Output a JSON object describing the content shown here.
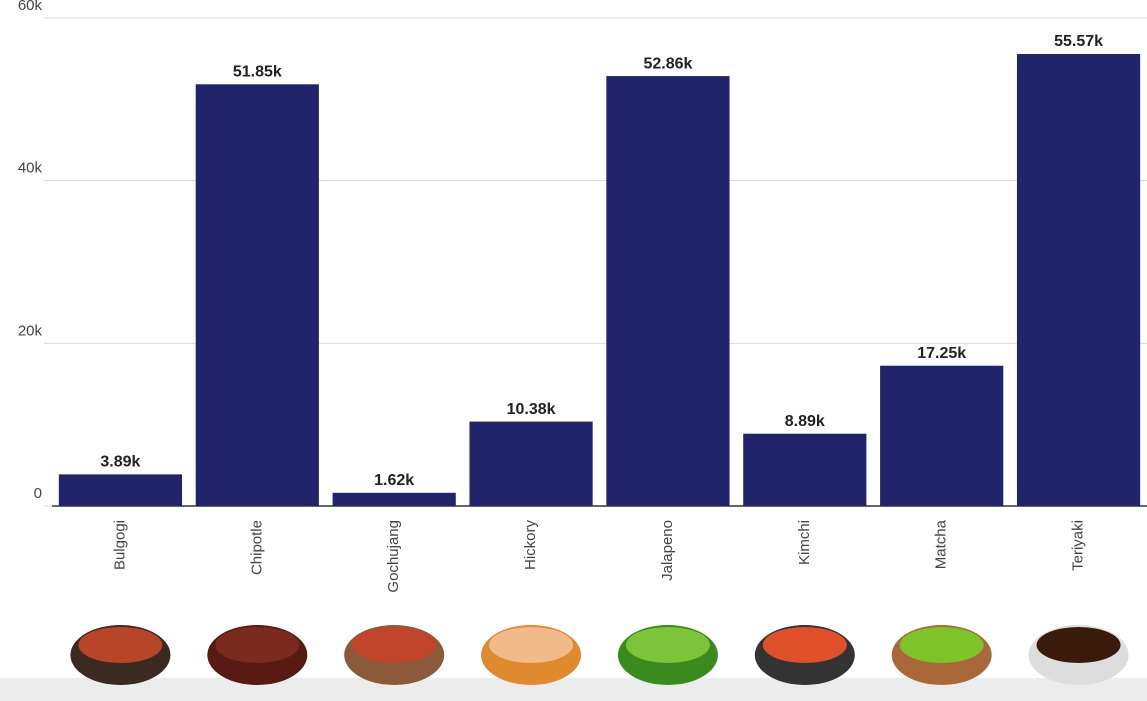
{
  "chart_data": {
    "type": "bar",
    "categories": [
      "Bulgogi",
      "Chipotle",
      "Gochujang",
      "Hickory",
      "Jalapeno",
      "Kimchi",
      "Matcha",
      "Teriyaki"
    ],
    "values": [
      3890,
      51850,
      1620,
      10380,
      52860,
      8890,
      17250,
      55570
    ],
    "value_labels": [
      "3.89k",
      "51.85k",
      "1.62k",
      "10.38k",
      "52.86k",
      "8.89k",
      "17.25k",
      "55.57k"
    ],
    "color": "#22246b",
    "ylim": [
      0,
      60000
    ],
    "yticks": [
      0,
      {
        "value": 20000,
        "label": "20k"
      },
      {
        "value": 40000,
        "label": "40k"
      },
      {
        "value": 60000,
        "label": "60k"
      }
    ],
    "grid": true
  }
}
